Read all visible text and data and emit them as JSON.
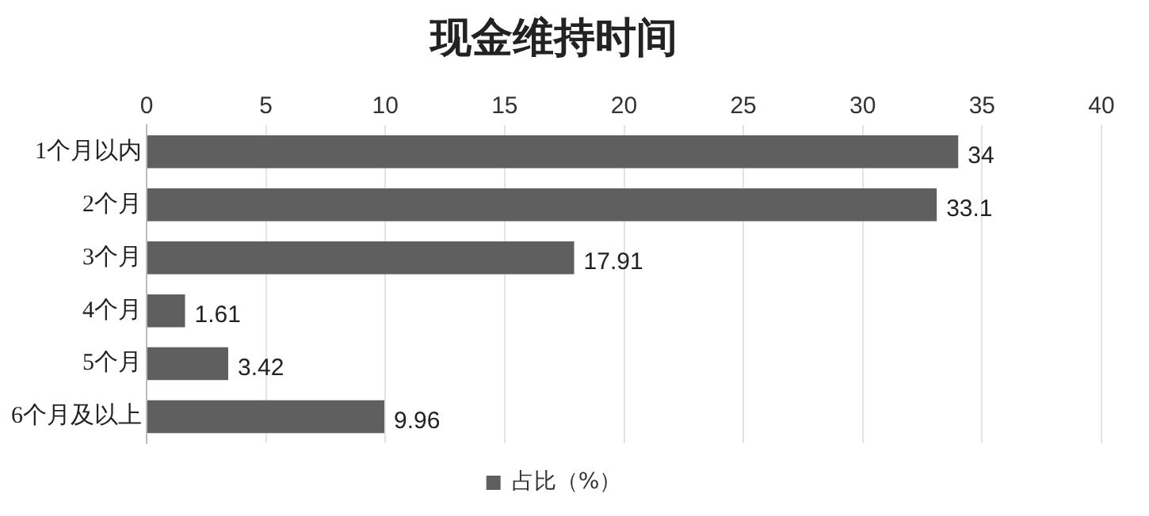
{
  "chart_data": {
    "type": "bar",
    "orientation": "horizontal",
    "title": "现金维持时间",
    "categories": [
      "1个月以内",
      "2个月",
      "3个月",
      "4个月",
      "5个月",
      "6个月及以上"
    ],
    "series": [
      {
        "name": "占比（%）",
        "color": "#5f5f5f",
        "values": [
          34,
          33.1,
          17.91,
          1.61,
          3.42,
          9.96
        ]
      }
    ],
    "xlim": [
      0,
      40
    ],
    "xticks": [
      0,
      5,
      10,
      15,
      20,
      25,
      30,
      35,
      40
    ],
    "grid": "x",
    "legend": "bottom",
    "data_labels": true
  }
}
